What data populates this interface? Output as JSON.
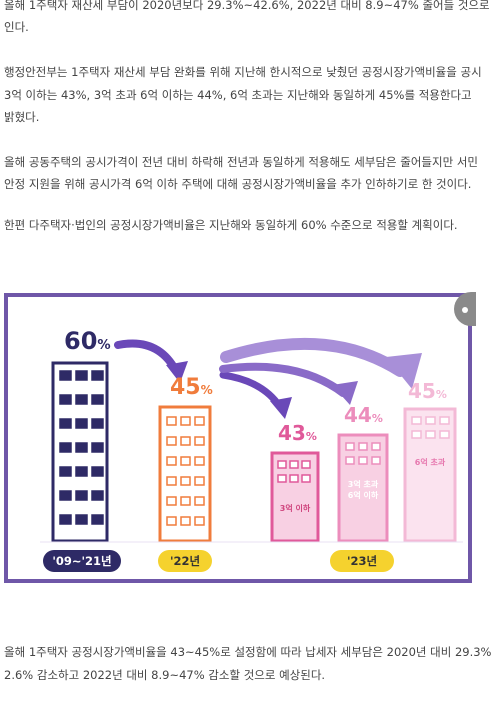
{
  "article": {
    "paragraphs": [
      [
        "올해 1주택자 재산세 부담이 2020년보다 29.3%~42.6%, 2022년 대비 8.9~47% 줄어들 것으로",
        "인다."
      ],
      [
        "행정안전부는 1주택자 재산세 부담 완화를 위해 지난해 한시적으로 낮췄던 공정시장가액비율을 공시",
        "3억 이하는 43%, 3억 초과 6억 이하는 44%, 6억 초과는 지난해와 동일하게 45%를 적용한다고",
        "밝혔다."
      ],
      [
        "올해 공동주택의 공시가격이 전년 대비 하락해 전년과 동일하게 적용해도 세부담은 줄어들지만 서민",
        "안정 지원을 위해 공시가격 6억 이하 주택에 대해 공정시장가액비율을 추가 인하하기로 한 것이다."
      ],
      [
        "한편 다주택자·법인의 공정시장가액비율은 지난해와 동일하게 60% 수준으로 적용할 계획이다."
      ],
      [
        "올해 1주택자 공정시장가액비율을 43~45%로 설정함에 따라 납세자 세부담은 2020년 대비 29.3%",
        "2.6% 감소하고 2022년 대비 8.9~47% 감소할 것으로 예상된다."
      ]
    ]
  },
  "infographic": {
    "buildings": [
      {
        "pct": "60",
        "unit": "%",
        "label": "",
        "period": "'09~'21년"
      },
      {
        "pct": "45",
        "unit": "%",
        "label": "",
        "period": "'22년"
      },
      {
        "pct": "43",
        "unit": "%",
        "label": "3억 이하",
        "period": ""
      },
      {
        "pct": "44",
        "unit": "%",
        "label": "3억 초과\n6억 이하",
        "period": ""
      },
      {
        "pct": "45",
        "unit": "%",
        "label": "6억 초과",
        "period": ""
      }
    ],
    "period_2023": "'23년",
    "colors": {
      "border": "#6f57a8",
      "navy": "#2e2a66",
      "orange": "#f07c3c",
      "pink1": "#e0599a",
      "pink2": "#ec8dbc",
      "pink3": "#f3b9d6",
      "yellow": "#f5d22e"
    }
  }
}
